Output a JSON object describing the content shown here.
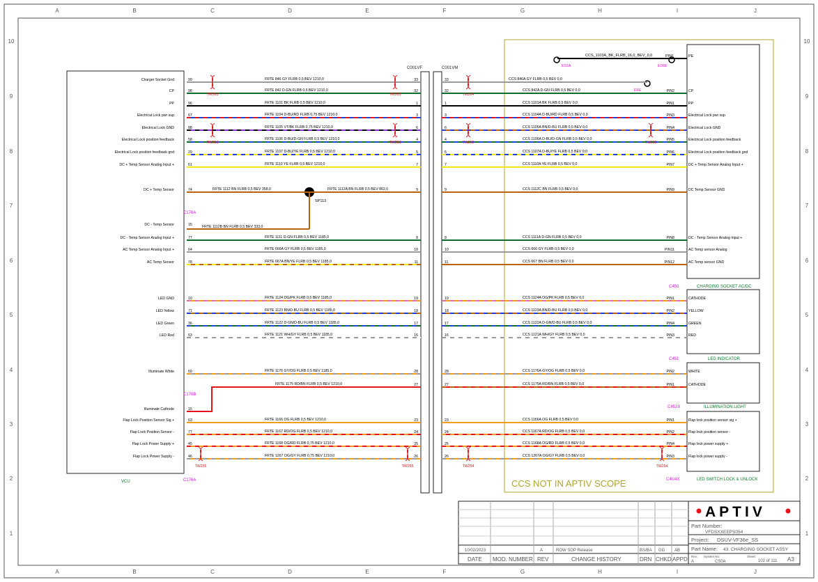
{
  "grid": {
    "cols": [
      "A",
      "B",
      "C",
      "D",
      "E",
      "F",
      "G",
      "H",
      "I",
      "J"
    ],
    "rows": [
      "10",
      "9",
      "8",
      "7",
      "6",
      "5",
      "4",
      "3",
      "2",
      "1"
    ]
  },
  "connectors": {
    "vcu": "VCU",
    "c176a": "C176A",
    "c176b": "C176B",
    "c176a_bottom": "C176A",
    "c001vf": "C001VF",
    "c001vm": "C001VM",
    "c450": "C450",
    "c450_name": "CHARGING SOCKET AC/DC",
    "c451": "C451",
    "c451_name": "LED INDICATOR",
    "c452x": "C452X",
    "c452x_name": "ILLUMINATION LIGHT",
    "c4u4x": "C4U4X",
    "c4u4x_name": "LED SWITCH LOCK & UNLOCK"
  },
  "ground": {
    "wire": "CCS_1103A_BK_FLRB_16,0_BEV_0,0",
    "e02a": "E02A",
    "e06e": "E06E",
    "e6e": "E6E",
    "pin1": "PIN1",
    "pe": "PE"
  },
  "splice": "SP113",
  "scope_note": "CCS NOT IN APTIV SCOPE",
  "wires": [
    {
      "vlabel": "Charger Socket Gnd",
      "vpin": "99",
      "lw": "FRTE_846_GY_FLRB_0,5_BEV_1210,0",
      "ip": "33",
      "rw": "CCS_846A_GY_FLRB_0,5_BEV_0,0",
      "cp": "",
      "cl": ""
    },
    {
      "vlabel": "CP",
      "vpin": "98",
      "lw": "FRTE_842_D-GN_FLRB_0,5_BEV_1210,0",
      "ip": "32",
      "rw": "CCS_842A_D-GN_FLRB_0,5_BEV_0,0",
      "cp": "PIN2",
      "cl": "CP"
    },
    {
      "vlabel": "PP",
      "vpin": "96",
      "lw": "FRTE_1101_BK_FLRB_0,5_BEV_1210,0",
      "ip": "1",
      "rw": "CCS_1101A_BK_FLRB_0,5_BEV_0,0",
      "cp": "PIN1",
      "cl": "PP"
    },
    {
      "vlabel": "Electrical Lock pwr sup",
      "vpin": "67",
      "lw": "FRTE_1104_D-BU/RD_FLRB_0,75_BEV_1210,0",
      "ip": "3",
      "rw": "CCS_1104A_D-BU/RD_FLRB_0,5_BEV_0,0",
      "cp": "PIN3",
      "cl": "Electrical Lock pwr sup"
    },
    {
      "vlabel": "Electrical Lock GND",
      "vpin": "88",
      "lw": "FRTE_1105_VT/BK_FLRB_0,75_BEV_1210,0",
      "ip": "6",
      "rw": "CCS_1105A_BN/D-BU_FLRB_0,5_BEV_0,0",
      "cp": "PIN4",
      "cl": "Electrical Lock GND"
    },
    {
      "vlabel": "Electrical Lock position feedback",
      "vpin": "58",
      "lw": "FRTE_1106_D-BU/D-GN_FLRB_0,5_BEV_1210,0",
      "ip": "4",
      "rw": "CCS_1106A_D-BU/D-GN_FLRB_0,5_BEV_0,0",
      "cp": "PIN5",
      "cl": "Electrical Lock position feedback"
    },
    {
      "vlabel": "Electrical Lock position feedback gnd",
      "vpin": "29",
      "lw": "FRTE_1107_D-BU/YE_FLRB_0,5_BEV_1210,0",
      "ip": "5",
      "rw": "CCS_1107A_D-BU/YE_FLRB_0,5_BEV_0,0",
      "cp": "PIN6",
      "cl": "Electrical Lock position feedback gnd"
    },
    {
      "vlabel": "DC + Temp Sensor Analog Input +",
      "vpin": "61",
      "lw": "FRTE_1110_YE_FLRB_0,5_BEV_1210,0",
      "ip": "7",
      "rw": "CCS_1110A_YE_FLRB_0,5_BEV_0,0",
      "cp": "PIN7",
      "cl": "DC + Temp Sensor Analog Input +"
    },
    {
      "vlabel": "DC + Temp Sensor",
      "vpin": "74",
      "lw": "FRTE_1112_BN_FLRB_0,5_BEV_358,0",
      "lw2": "FRTE_1112A_BN_FLRB_0,5_BEV_862,0",
      "ip": "9",
      "rw": "CCS_1112C_BN_FLRB_0,5_BEV_0,0",
      "cp": "PIN9",
      "cl": "DC Temp Sensor GND"
    },
    {
      "vlabel": "DC - Temp Sensor",
      "vpin": "15",
      "lw": "FRTE_1112B_BN_FLRB_0,5_BEV_333,0",
      "ip": "",
      "rw": "",
      "cp": "",
      "cl": ""
    },
    {
      "vlabel": "DC - Temp Sensor Analog Input +",
      "vpin": "77",
      "lw": "FRTE_1111_D-GN_FLRB_0,5_BEV_1185,0",
      "ip": "8",
      "rw": "CCS_1111A_D-GN_FLRB_0,5_BEV_0,0",
      "cp": "PIN8",
      "cl": "DC - Temp Sensor Analog Input +"
    },
    {
      "vlabel": "AC Temp Sensor Analog Input +",
      "vpin": "64",
      "lw": "FRTE_666A_GY_FLRB_0,5_BEV_1185,0",
      "ip": "10",
      "rw": "CCS_666_GY_FLRB_0,5_BEV_0,0",
      "cp": "PIN11",
      "cl": "AC Temp sensor Analog"
    },
    {
      "vlabel": "AC Temp Sensor",
      "vpin": "78",
      "lw": "FRTE_667A_BN/YE_FLRB_0,5_BEV_1185,0",
      "ip": "11",
      "rw": "CCS_667_BN_FLRB_0,5_BEV_0,0",
      "cp": "PIN12",
      "cl": "AC Temp sensor GND"
    },
    {
      "vlabel": "LED GND",
      "vpin": "10",
      "lw": "FRTE_1124_OG/PK_FLRB_0,5_BEV_1185,0",
      "ip": "19",
      "rw": "CCS_1124A_OG/PK_FLRB_0,5_BEV_0,0",
      "cp": "PIN1",
      "cl": "CATHODE"
    },
    {
      "vlabel": "LED Yellow",
      "vpin": "71",
      "lw": "FRTE_1123_BN/D-BU_FLRB_0,5_BEV_1185,0",
      "ip": "18",
      "rw": "CCS_1123A_BN/D-BU_FLRB_0,5_BEV_0,0",
      "cp": "PIN2",
      "cl": "YELLOW"
    },
    {
      "vlabel": "LED Green",
      "vpin": "36",
      "lw": "FRTE_1122_D-GN/D-BU_FLRB_0,5_BEV_1185,0",
      "ip": "17",
      "rw": "CCS_1122A_D-GN/D-BU_FLRB_0,5_BEV_0,0",
      "cp": "PIN4",
      "cl": "GREEN"
    },
    {
      "vlabel": "LED Red",
      "vpin": "53",
      "lw": "FRTE_1121_WH/GY_FLRB_0,5_BEV_1185,0",
      "ip": "16",
      "rw": "CCS_1121A_WH/GY_FLRB_0,5_BEV_0,0",
      "cp": "PIN3",
      "cl": "RED"
    },
    {
      "vlabel": "Illuminate White",
      "vpin": "69",
      "lw": "FRTE_1176_GY/OG_FLRB_0,5_BEV_1185,0",
      "ip": "28",
      "rw": "CCS_1176A_GY/OG_FLRB_0,5_BEV_0,0",
      "cp": "PIN2",
      "cl": "WHITE"
    },
    {
      "vlabel": "",
      "vpin": "",
      "lw": "FRTE_1175_RD/BN_FLRB_0,5_BEV_1210,0",
      "ip": "27",
      "rw": "CCS_1175A_RD/BN_FLRB_0,5_BEV_0,0",
      "cp": "PIN1",
      "cl": "CATHODE"
    },
    {
      "vlabel": "Illuminate Cathode",
      "vpin": "15",
      "lw": "",
      "ip": "",
      "rw": "",
      "cp": "",
      "cl": ""
    },
    {
      "vlabel": "Flap Lock Position Sensor Sig +",
      "vpin": "63",
      "lw": "FRTE_1166_OG_FLRB_0,5_BEV_1210,0",
      "ip": "23",
      "rw": "CCS_1166A_OG_FLRB_0,5_BEV_0,0",
      "cp": "PIN1",
      "cl": "Flap lock position sensor sig +"
    },
    {
      "vlabel": "Flap Lock Position Sensor -",
      "vpin": "77",
      "lw": "FRTE_1167_RD/OG_FLRB_0,5_BEV_1210,0",
      "ip": "24",
      "rw": "CCS_1167A_RD/OG_FLRB_0,5_BEV_0,0",
      "cp": "PIN2",
      "cl": "Flap lock position sensor -"
    },
    {
      "vlabel": "Flap Lock Power Supply +",
      "vpin": "45",
      "lw": "FRTE_1168_OG/RD_FLRB_0,75_BEV_1210,0",
      "ip": "25",
      "rw": "CCS_1168A_OG/RD_FLRB_0,5_BEV_0,0",
      "cp": "PIN4",
      "cl": "Flap lock power supply +"
    },
    {
      "vlabel": "Flap Lock Power Supply -",
      "vpin": "46",
      "lw": "FRTE_1267_OG/GY_FLRB_0,75_BEV_1210,0",
      "ip": "26",
      "rw": "CCS_1267A_OG/GY_FLRB_0,5_BEV_0,0",
      "cp": "PIN3",
      "cl": "Flap lock power supply -"
    }
  ],
  "twists": [
    "TW263",
    "TW263",
    "TW264",
    "TW253",
    "TW253",
    "TW252",
    "TW252",
    "TW255",
    "TW255",
    "TW254",
    "TW254"
  ],
  "titleblock": {
    "logo": "APTIV",
    "part_number_label": "Part Number:",
    "part_number": "VFDSXXEEPS054",
    "project_label": "Project:",
    "project": "DSUV-VF36e_SS",
    "part_name_label": "Part Name:",
    "part_name": "43. CHARGING SOCKET ASSY",
    "date": "10/02/2023",
    "rev": "A",
    "change": "ROW SOP Release",
    "drn": "BS/BA",
    "chkd": "GG",
    "appd": "AB",
    "h_date": "DATE",
    "h_mod": "MOD. NUMBER",
    "h_rev": "REV",
    "h_change": "CHANGE HISTORY",
    "h_drn": "DRN",
    "h_chkd": "CHKD",
    "h_appd": "APPD",
    "rev_label": "Rev:",
    "rev_val": "A",
    "sys_label": "System No:",
    "sys_val": "CS0A",
    "sheet_label": "Sheet:",
    "sheet_val": "102 of 111",
    "size": "A3"
  },
  "colors": {
    "GY": "#9a9a9a",
    "DGN": "#0a6b2a",
    "BK": "#000000",
    "DBU": "#1f3fd6",
    "RD": "#e0141a",
    "BN": "#b8630a",
    "YE": "#f2e61a",
    "OG": "#f59a1a",
    "PK": "#e36aa8",
    "VT": "#8b2fd6",
    "WH": "#ffffff",
    "olive": "#b0a52a",
    "magenta": "#d61ad6",
    "label_green": "#0a7a2a"
  }
}
